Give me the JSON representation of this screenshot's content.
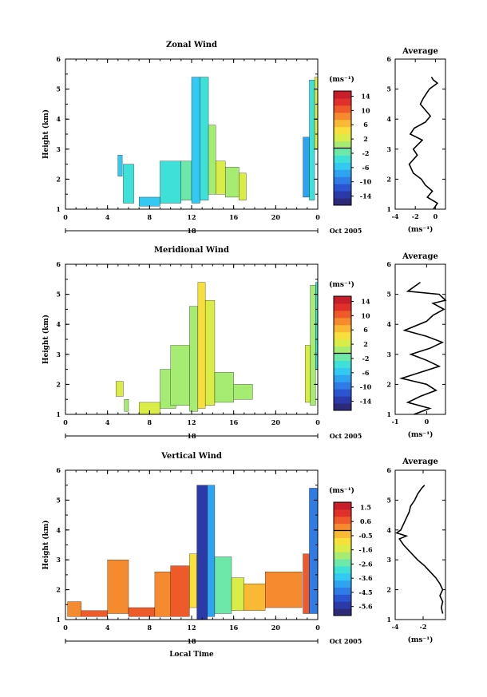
{
  "date_label": "Oct 2005",
  "day_label": "18",
  "xlabel_bottom": "Local Time",
  "chart_data": [
    {
      "type": "heatmap",
      "title": "Zonal Wind",
      "xlabel": "",
      "ylabel": "Height (km)",
      "x_ticks": [
        "0",
        "4",
        "8",
        "12",
        "16",
        "20",
        "0"
      ],
      "y_ticks": [
        "1",
        "2",
        "3",
        "4",
        "5",
        "6"
      ],
      "xlim": [
        0,
        24
      ],
      "ylim": [
        1,
        6
      ],
      "colorbar": {
        "unit": "(ms⁻¹)",
        "ticks": [
          "14",
          "10",
          "6",
          "2",
          "-2",
          "-6",
          "-10",
          "-14"
        ],
        "range": [
          -16,
          16
        ]
      },
      "field": [
        {
          "x": [
            5.0,
            5.4
          ],
          "y": [
            2.1,
            2.8
          ],
          "v": -5
        },
        {
          "x": [
            5.5,
            6.5
          ],
          "y": [
            1.2,
            2.5
          ],
          "v": -3
        },
        {
          "x": [
            7.0,
            9.0
          ],
          "y": [
            1.1,
            1.4
          ],
          "v": -6
        },
        {
          "x": [
            9.0,
            11.0
          ],
          "y": [
            1.2,
            2.6
          ],
          "v": -4
        },
        {
          "x": [
            11.0,
            12.0
          ],
          "y": [
            1.3,
            2.6
          ],
          "v": -2
        },
        {
          "x": [
            12.0,
            12.8
          ],
          "y": [
            1.2,
            5.4
          ],
          "v": -6
        },
        {
          "x": [
            12.8,
            13.6
          ],
          "y": [
            1.3,
            5.4
          ],
          "v": -3
        },
        {
          "x": [
            13.6,
            14.3
          ],
          "y": [
            1.5,
            3.8
          ],
          "v": 0
        },
        {
          "x": [
            14.3,
            15.2
          ],
          "y": [
            1.5,
            2.6
          ],
          "v": 3
        },
        {
          "x": [
            15.2,
            16.5
          ],
          "y": [
            1.4,
            2.4
          ],
          "v": 1
        },
        {
          "x": [
            16.5,
            17.2
          ],
          "y": [
            1.3,
            2.2
          ],
          "v": 2
        },
        {
          "x": [
            22.6,
            23.2
          ],
          "y": [
            1.4,
            3.4
          ],
          "v": -8
        },
        {
          "x": [
            23.2,
            23.7
          ],
          "y": [
            1.3,
            5.3
          ],
          "v": -4
        },
        {
          "x": [
            23.7,
            24.0
          ],
          "y": [
            3.0,
            5.4
          ],
          "v": 2
        }
      ],
      "profile": {
        "title": "Average",
        "xlabel": "(ms⁻¹)",
        "ylabel": "",
        "x_ticks": [
          "-4",
          "-2",
          "0"
        ],
        "y_ticks": [
          "1",
          "2",
          "3",
          "4",
          "5",
          "6"
        ],
        "xlim": [
          -4,
          1
        ],
        "ylim": [
          1,
          6
        ],
        "points": [
          [
            -0.4,
            5.4
          ],
          [
            -0.2,
            5.3
          ],
          [
            0.2,
            5.2
          ],
          [
            -0.6,
            5.0
          ],
          [
            -1.2,
            4.7
          ],
          [
            -1.5,
            4.5
          ],
          [
            -1.0,
            4.3
          ],
          [
            -0.5,
            4.1
          ],
          [
            -1.0,
            3.9
          ],
          [
            -2.1,
            3.7
          ],
          [
            -2.5,
            3.5
          ],
          [
            -1.3,
            3.3
          ],
          [
            -2.2,
            3.0
          ],
          [
            -1.8,
            2.8
          ],
          [
            -2.6,
            2.5
          ],
          [
            -2.2,
            2.2
          ],
          [
            -1.4,
            2.0
          ],
          [
            -1.0,
            1.8
          ],
          [
            -0.3,
            1.6
          ],
          [
            -0.8,
            1.4
          ],
          [
            0.2,
            1.2
          ],
          [
            -0.2,
            1.0
          ]
        ]
      }
    },
    {
      "type": "heatmap",
      "title": "Meridional Wind",
      "xlabel": "",
      "ylabel": "Height (km)",
      "x_ticks": [
        "0",
        "4",
        "8",
        "12",
        "16",
        "20",
        "0"
      ],
      "y_ticks": [
        "1",
        "2",
        "3",
        "4",
        "5",
        "6"
      ],
      "xlim": [
        0,
        24
      ],
      "ylim": [
        1,
        6
      ],
      "colorbar": {
        "unit": "(ms⁻¹)",
        "ticks": [
          "14",
          "10",
          "6",
          "2",
          "-2",
          "-6",
          "-10",
          "-14"
        ],
        "range": [
          -16,
          16
        ]
      },
      "field": [
        {
          "x": [
            4.8,
            5.5
          ],
          "y": [
            1.6,
            2.1
          ],
          "v": 3
        },
        {
          "x": [
            5.6,
            6.0
          ],
          "y": [
            1.1,
            1.5
          ],
          "v": 1
        },
        {
          "x": [
            7.0,
            9.0
          ],
          "y": [
            1.0,
            1.4
          ],
          "v": 2
        },
        {
          "x": [
            9.0,
            10.5
          ],
          "y": [
            1.2,
            2.5
          ],
          "v": 1
        },
        {
          "x": [
            10.0,
            11.8
          ],
          "y": [
            1.3,
            3.3
          ],
          "v": 0
        },
        {
          "x": [
            11.8,
            12.6
          ],
          "y": [
            1.1,
            4.6
          ],
          "v": 1
        },
        {
          "x": [
            12.6,
            13.3
          ],
          "y": [
            1.2,
            5.4
          ],
          "v": 4
        },
        {
          "x": [
            13.3,
            14.2
          ],
          "y": [
            1.3,
            4.8
          ],
          "v": 2
        },
        {
          "x": [
            14.2,
            16.0
          ],
          "y": [
            1.4,
            2.4
          ],
          "v": 1
        },
        {
          "x": [
            16.0,
            17.8
          ],
          "y": [
            1.5,
            2.0
          ],
          "v": 0
        },
        {
          "x": [
            22.8,
            23.3
          ],
          "y": [
            1.4,
            3.3
          ],
          "v": 3
        },
        {
          "x": [
            23.3,
            23.8
          ],
          "y": [
            1.3,
            5.3
          ],
          "v": 0
        },
        {
          "x": [
            23.8,
            24.0
          ],
          "y": [
            2.5,
            5.4
          ],
          "v": -4
        }
      ],
      "profile": {
        "title": "Average",
        "xlabel": "(ms⁻¹)",
        "ylabel": "",
        "x_ticks": [
          "-1",
          "0"
        ],
        "y_ticks": [
          "1",
          "2",
          "3",
          "4",
          "5",
          "6"
        ],
        "xlim": [
          -1,
          0.6
        ],
        "ylim": [
          1,
          6
        ],
        "points": [
          [
            -0.2,
            5.4
          ],
          [
            -0.6,
            5.1
          ],
          [
            0.4,
            5.0
          ],
          [
            0.6,
            4.8
          ],
          [
            0.2,
            4.7
          ],
          [
            0.55,
            4.5
          ],
          [
            0.2,
            4.3
          ],
          [
            0.0,
            4.1
          ],
          [
            -0.7,
            3.8
          ],
          [
            0.0,
            3.6
          ],
          [
            0.5,
            3.4
          ],
          [
            0.1,
            3.2
          ],
          [
            -0.5,
            3.0
          ],
          [
            0.0,
            2.8
          ],
          [
            0.4,
            2.6
          ],
          [
            -0.2,
            2.4
          ],
          [
            -0.8,
            2.2
          ],
          [
            0.0,
            2.0
          ],
          [
            0.3,
            1.8
          ],
          [
            -0.2,
            1.6
          ],
          [
            -0.6,
            1.4
          ],
          [
            0.1,
            1.2
          ],
          [
            -0.4,
            1.0
          ]
        ]
      }
    },
    {
      "type": "heatmap",
      "title": "Vertical Wind",
      "xlabel": "Local Time",
      "ylabel": "Height (km)",
      "x_ticks": [
        "0",
        "4",
        "8",
        "12",
        "16",
        "20",
        "0"
      ],
      "y_ticks": [
        "1",
        "2",
        "3",
        "4",
        "5",
        "6"
      ],
      "xlim": [
        0,
        24
      ],
      "ylim": [
        1,
        6
      ],
      "colorbar": {
        "unit": "(ms⁻¹)",
        "ticks": [
          "1.5",
          "0.6",
          "-0.5",
          "-1.6",
          "-2.6",
          "-3.6",
          "-4.5",
          "-5.6"
        ],
        "range": [
          -6,
          2
        ]
      },
      "field": [
        {
          "x": [
            0.2,
            1.5
          ],
          "y": [
            1.1,
            1.6
          ],
          "v": 0.3
        },
        {
          "x": [
            1.5,
            4.0
          ],
          "y": [
            1.1,
            1.3
          ],
          "v": 0.6
        },
        {
          "x": [
            4.0,
            6.0
          ],
          "y": [
            1.2,
            3.0
          ],
          "v": 0.0
        },
        {
          "x": [
            6.0,
            8.5
          ],
          "y": [
            1.1,
            1.4
          ],
          "v": 0.5
        },
        {
          "x": [
            8.5,
            10.0
          ],
          "y": [
            1.1,
            2.6
          ],
          "v": 0.2
        },
        {
          "x": [
            10.0,
            11.8
          ],
          "y": [
            1.1,
            2.8
          ],
          "v": 0.8
        },
        {
          "x": [
            11.8,
            12.5
          ],
          "y": [
            1.4,
            3.2
          ],
          "v": -1.0
        },
        {
          "x": [
            12.5,
            13.5
          ],
          "y": [
            1.0,
            5.5
          ],
          "v": -5.2
        },
        {
          "x": [
            13.5,
            14.2
          ],
          "y": [
            1.1,
            5.5
          ],
          "v": -3.6
        },
        {
          "x": [
            14.2,
            15.8
          ],
          "y": [
            1.2,
            3.1
          ],
          "v": -2.4
        },
        {
          "x": [
            15.8,
            17.0
          ],
          "y": [
            1.3,
            2.4
          ],
          "v": -1.2
        },
        {
          "x": [
            17.0,
            19.0
          ],
          "y": [
            1.3,
            2.2
          ],
          "v": -0.3
        },
        {
          "x": [
            19.0,
            22.5
          ],
          "y": [
            1.4,
            2.6
          ],
          "v": 0.2
        },
        {
          "x": [
            22.6,
            23.2
          ],
          "y": [
            1.2,
            3.2
          ],
          "v": 0.5
        },
        {
          "x": [
            23.2,
            24.0
          ],
          "y": [
            1.2,
            5.4
          ],
          "v": -4.2
        }
      ],
      "profile": {
        "title": "Average",
        "xlabel": "(ms⁻¹)",
        "ylabel": "",
        "x_ticks": [
          "-4",
          "-2"
        ],
        "y_ticks": [
          "1",
          "2",
          "3",
          "4",
          "5",
          "6"
        ],
        "xlim": [
          -4,
          -0.4
        ],
        "ylim": [
          1,
          6
        ],
        "points": [
          [
            -1.9,
            5.5
          ],
          [
            -2.1,
            5.4
          ],
          [
            -2.4,
            5.2
          ],
          [
            -2.6,
            5.0
          ],
          [
            -2.9,
            4.8
          ],
          [
            -3.0,
            4.6
          ],
          [
            -3.2,
            4.4
          ],
          [
            -3.4,
            4.2
          ],
          [
            -3.6,
            4.0
          ],
          [
            -3.9,
            3.9
          ],
          [
            -3.2,
            3.8
          ],
          [
            -3.7,
            3.7
          ],
          [
            -3.4,
            3.5
          ],
          [
            -3.0,
            3.3
          ],
          [
            -2.4,
            3.0
          ],
          [
            -1.9,
            2.8
          ],
          [
            -1.5,
            2.6
          ],
          [
            -1.1,
            2.4
          ],
          [
            -0.8,
            2.2
          ],
          [
            -0.6,
            2.0
          ],
          [
            -0.8,
            1.8
          ],
          [
            -0.6,
            1.6
          ],
          [
            -0.7,
            1.4
          ],
          [
            -0.6,
            1.2
          ]
        ]
      }
    }
  ]
}
